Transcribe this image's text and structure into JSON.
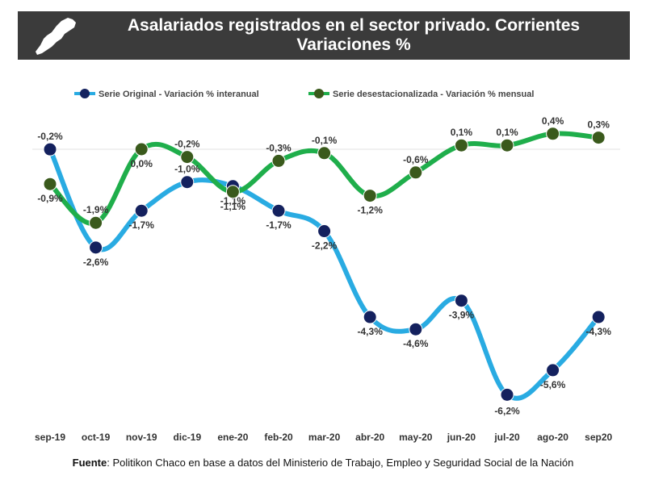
{
  "header": {
    "title_line1": "Asalariados registrados en el sector privado. Corrientes",
    "title_line2": "Variaciones %"
  },
  "footer": {
    "source_label": "Fuente",
    "source_text": ": Politikon Chaco en base a datos del Ministerio de Trabajo, Empleo y Seguridad Social de la Nación"
  },
  "colors": {
    "header_bg": "#3b3b3b",
    "series_original_line": "#29abe2",
    "series_original_marker": "#14215e",
    "series_desest_line": "#1fae4b",
    "series_desest_marker": "#3a5a1c"
  },
  "chart_data": {
    "type": "line",
    "categories": [
      "sep-19",
      "oct-19",
      "nov-19",
      "dic-19",
      "ene-20",
      "feb-20",
      "mar-20",
      "abr-20",
      "may-20",
      "jun-20",
      "jul-20",
      "ago-20",
      "sep20"
    ],
    "legend_position": "top",
    "grid": false,
    "series": [
      {
        "name": "Serie Original - Variación % interanual",
        "values": [
          -0.2,
          -2.6,
          -1.7,
          -1.0,
          -1.1,
          -1.7,
          -2.2,
          -4.3,
          -4.6,
          -3.9,
          -6.2,
          -5.6,
          -4.3
        ],
        "labels": [
          "-0,2%",
          "-2,6%",
          "-1,7%",
          "-1,0%",
          "-1,1%",
          "-1,7%",
          "-2,2%",
          "-4,3%",
          "-4,6%",
          "-3,9%",
          "-6,2%",
          "-5,6%",
          "-4,3%"
        ]
      },
      {
        "name": "Serie desestacionalizada - Variación % mensual",
        "values": [
          -0.9,
          -1.9,
          0.0,
          -0.2,
          -1.1,
          -0.3,
          -0.1,
          -1.2,
          -0.6,
          0.1,
          0.1,
          0.4,
          0.3
        ],
        "labels": [
          "-0,9%",
          "-1,9%",
          "0,0%",
          "-0,2%",
          "-1,1%",
          "-0,3%",
          "-0,1%",
          "-1,2%",
          "-0,6%",
          "0,1%",
          "0,1%",
          "0,4%",
          "0,3%"
        ]
      }
    ]
  }
}
